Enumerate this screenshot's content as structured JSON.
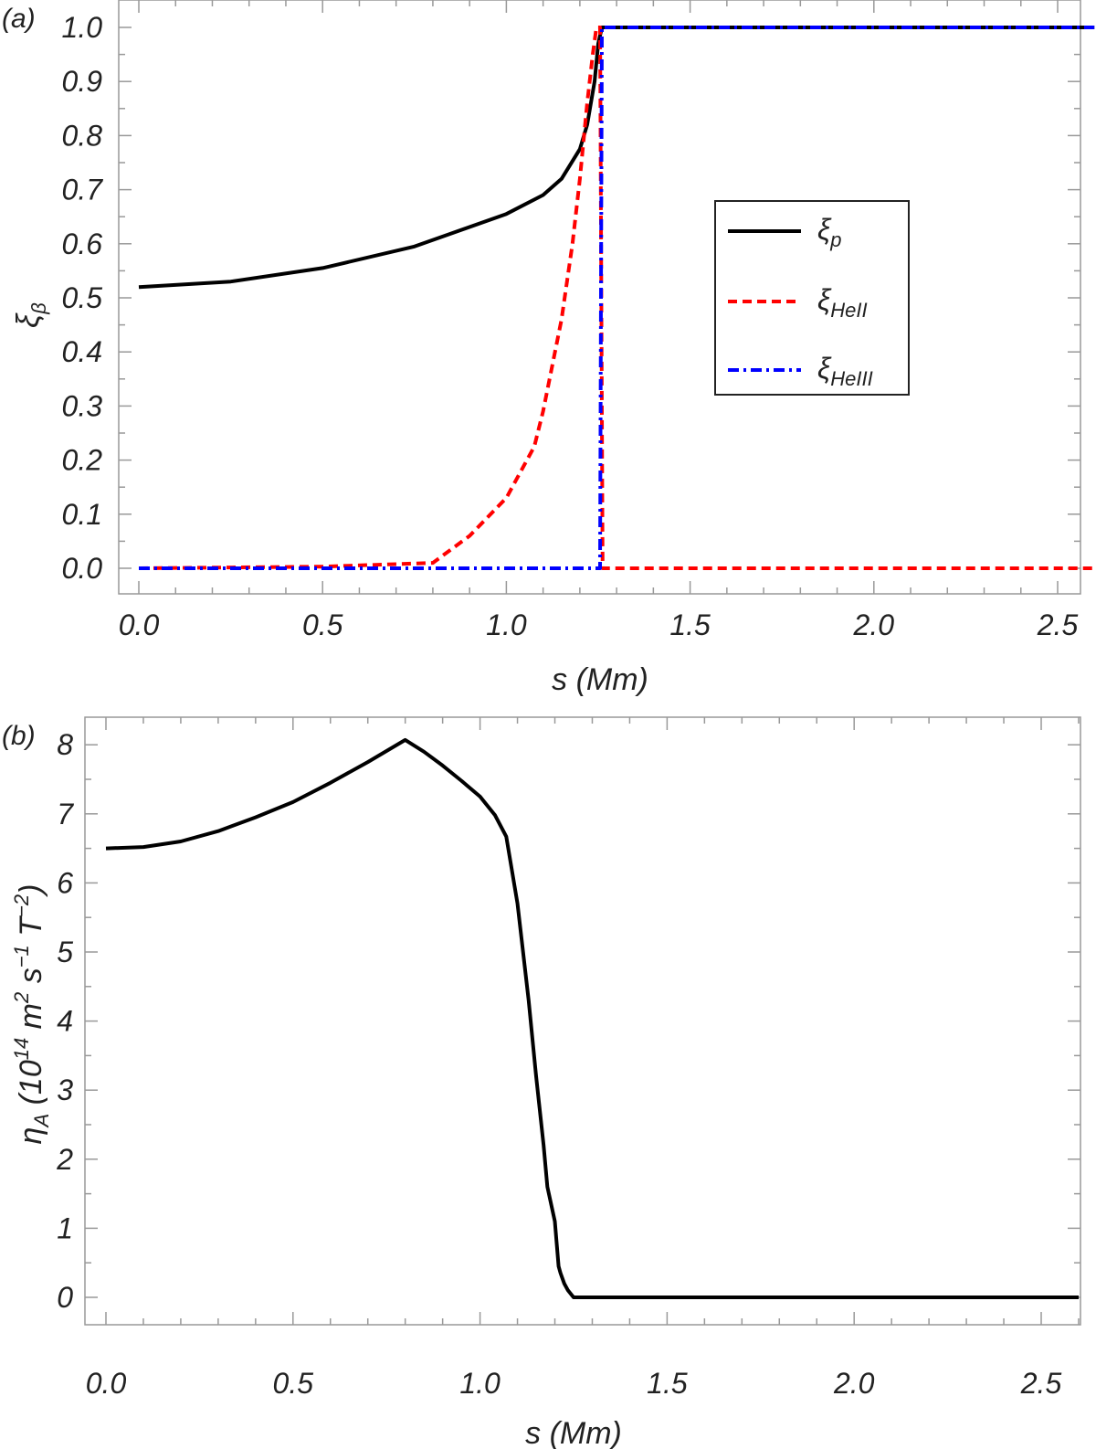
{
  "chart_data": [
    {
      "panel_label": "(a)",
      "type": "line",
      "xlabel": "s (Mm)",
      "ylabel": {
        "main": "ξ",
        "sub": "β"
      },
      "xlim": [
        -0.055,
        2.6
      ],
      "ylim": [
        -0.05,
        1.05
      ],
      "xticks": [
        "0.0",
        "0.5",
        "1.0",
        "1.5",
        "2.0",
        "2.5"
      ],
      "yticks": [
        "0.0",
        "0.1",
        "0.2",
        "0.3",
        "0.4",
        "0.5",
        "0.6",
        "0.7",
        "0.8",
        "0.9",
        "1.0"
      ],
      "grid": false,
      "legend_position": "center-right",
      "series": [
        {
          "name": "ξp",
          "legend": {
            "main": "ξ",
            "sub": "p"
          },
          "color": "#000000",
          "style": "solid",
          "x": [
            0,
            0.25,
            0.5,
            0.75,
            1.0,
            1.1,
            1.15,
            1.2,
            1.22,
            1.24,
            1.25,
            1.26,
            1.27,
            2.6
          ],
          "y": [
            0.52,
            0.53,
            0.555,
            0.595,
            0.655,
            0.69,
            0.72,
            0.775,
            0.82,
            0.9,
            0.97,
            1.0,
            1.0,
            1.0
          ]
        },
        {
          "name": "ξHeII",
          "legend": {
            "main": "ξ",
            "sub": "HeII"
          },
          "color": "#ff0000",
          "style": "dashed",
          "x": [
            0,
            0.5,
            0.8,
            0.9,
            1.0,
            1.076,
            1.1,
            1.15,
            1.18,
            1.2,
            1.22,
            1.235,
            1.245,
            1.255,
            1.262,
            2.6
          ],
          "y": [
            0,
            0.003,
            0.01,
            0.06,
            0.13,
            0.225,
            0.29,
            0.46,
            0.6,
            0.72,
            0.86,
            0.95,
            1.0,
            1.0,
            0,
            0
          ]
        },
        {
          "name": "ξHeIII",
          "legend": {
            "main": "ξ",
            "sub": "HeIII"
          },
          "color": "#0000ff",
          "style": "dashdot",
          "x": [
            0,
            1.255,
            1.26,
            2.6
          ],
          "y": [
            0,
            0,
            1.0,
            1.0
          ]
        }
      ]
    },
    {
      "panel_label": "(b)",
      "type": "line",
      "xlabel": "s (Mm)",
      "ylabel": {
        "main": "η",
        "sub": "A",
        "unit": " (10",
        "exp1": "14",
        "m": " m",
        "exp2": "2",
        "s": " s",
        "exp3": "−1",
        "T": " T",
        "exp4": "−2",
        "close": ")"
      },
      "xlim": [
        -0.057,
        2.6
      ],
      "ylim": [
        -0.4,
        8.4
      ],
      "xticks": [
        "0.0",
        "0.5",
        "1.0",
        "1.5",
        "2.0",
        "2.5"
      ],
      "yticks": [
        "0",
        "1",
        "2",
        "3",
        "4",
        "5",
        "6",
        "7",
        "8"
      ],
      "grid": false,
      "series": [
        {
          "color": "#000000",
          "style": "solid",
          "x": [
            0,
            0.1,
            0.2,
            0.3,
            0.4,
            0.5,
            0.6,
            0.7,
            0.8,
            0.85,
            0.9,
            0.95,
            1.0,
            1.04,
            1.07,
            1.1,
            1.13,
            1.15,
            1.17,
            1.18,
            1.2,
            1.21,
            1.215,
            1.225,
            1.235,
            1.25,
            2.6
          ],
          "y": [
            6.5,
            6.52,
            6.6,
            6.75,
            6.95,
            7.17,
            7.45,
            7.75,
            8.07,
            7.9,
            7.7,
            7.48,
            7.25,
            6.98,
            6.67,
            5.7,
            4.3,
            3.2,
            2.2,
            1.6,
            1.1,
            0.45,
            0.35,
            0.2,
            0.1,
            0.0,
            0.0
          ]
        }
      ]
    }
  ]
}
